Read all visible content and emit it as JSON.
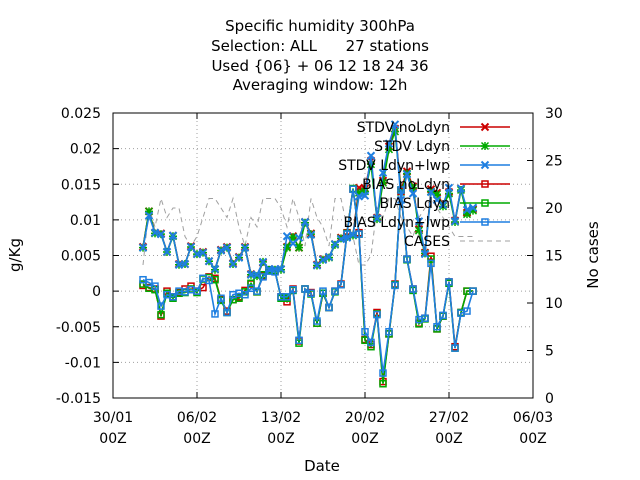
{
  "chart_data": {
    "type": "line",
    "title_lines": [
      "Specific humidity 300hPa",
      "Selection: ALL      27 stations",
      "Used {06} + 06 12 18 24 36",
      "Averaging window: 12h"
    ],
    "xlabel": "Date",
    "ylabel": "g/Kg",
    "y2label": "No cases",
    "x_ticks": [
      {
        "l1": "30/01",
        "l2": "00Z"
      },
      {
        "l1": "06/02",
        "l2": "00Z"
      },
      {
        "l1": "13/02",
        "l2": "00Z"
      },
      {
        "l1": "20/02",
        "l2": "00Z"
      },
      {
        "l1": "27/02",
        "l2": "00Z"
      },
      {
        "l1": "06/03",
        "l2": "00Z"
      }
    ],
    "xlim_days": [
      0,
      35
    ],
    "ylim": [
      -0.015,
      0.025
    ],
    "y_ticks": [
      "-0.015",
      "-0.01",
      "-0.005",
      "0",
      "0.005",
      "0.01",
      "0.015",
      "0.02",
      "0.025"
    ],
    "y2lim": [
      0,
      30
    ],
    "y2_ticks": [
      "0",
      "5",
      "10",
      "15",
      "20",
      "25",
      "30"
    ],
    "grid": true,
    "legend_position": "top-right",
    "colors": {
      "stdv_noldyn": "#cc0000",
      "stdv_ldyn": "#00aa00",
      "stdv_ldyn_lwp": "#1f7fe0",
      "bias_noldyn": "#cc0000",
      "bias_ldyn": "#00aa00",
      "bias_ldyn_lwp": "#1f7fe0",
      "cases": "#a0a0a0"
    },
    "x_days": [
      2.5,
      3,
      3.5,
      4,
      4.5,
      5,
      5.5,
      6,
      6.5,
      7,
      7.5,
      8,
      8.5,
      9,
      9.5,
      10,
      10.5,
      11,
      11.5,
      12,
      12.5,
      13,
      13.5,
      14,
      14.5,
      15,
      15.5,
      16,
      16.5,
      17,
      17.5,
      18,
      18.5,
      19,
      19.5,
      20,
      20.5,
      21,
      21.5,
      22,
      22.5,
      23,
      23.5,
      24,
      24.5,
      25,
      25.5,
      26,
      26.5,
      27,
      27.5,
      28,
      28.5,
      29,
      29.5,
      30
    ],
    "series": [
      {
        "name": "STDV noLdyn",
        "kind": "stdv",
        "marker": "x",
        "values": [
          0.0062,
          0.0112,
          0.0082,
          0.0081,
          0.0055,
          0.0078,
          0.0038,
          0.0038,
          0.0063,
          0.0052,
          0.0055,
          0.0042,
          0.0031,
          0.0058,
          0.0062,
          0.0039,
          0.0048,
          0.0062,
          0.0024,
          0.0022,
          0.004,
          0.0031,
          0.0031,
          0.0031,
          0.0062,
          0.0077,
          0.0061,
          0.0097,
          0.0081,
          0.0037,
          0.0045,
          0.0048,
          0.0066,
          0.0075,
          0.0077,
          0.0079,
          0.0145,
          0.0144,
          0.0183,
          0.0103,
          0.0155,
          0.0203,
          0.0228,
          0.0142,
          0.0168,
          0.0147,
          0.0087,
          0.0054,
          0.0143,
          0.0138,
          0.0121,
          0.0139,
          0.0099,
          0.0144,
          0.011,
          0.0115
        ]
      },
      {
        "name": "STDV Ldyn",
        "kind": "stdv",
        "marker": "star",
        "values": [
          0.0061,
          0.0112,
          0.0081,
          0.008,
          0.0055,
          0.0077,
          0.0037,
          0.0038,
          0.0062,
          0.0052,
          0.0054,
          0.0042,
          0.003,
          0.0057,
          0.0061,
          0.0038,
          0.0047,
          0.0061,
          0.0023,
          0.0021,
          0.0041,
          0.003,
          0.003,
          0.003,
          0.0061,
          0.0076,
          0.0061,
          0.0096,
          0.008,
          0.0036,
          0.0044,
          0.0047,
          0.0065,
          0.0074,
          0.0076,
          0.0078,
          0.0138,
          0.014,
          0.0178,
          0.0101,
          0.0152,
          0.0199,
          0.0224,
          0.0139,
          0.0165,
          0.0145,
          0.0085,
          0.0053,
          0.014,
          0.0136,
          0.0119,
          0.0137,
          0.0097,
          0.0142,
          0.0108,
          0.0113
        ]
      },
      {
        "name": "STDV Ldyn+lwp",
        "kind": "stdv",
        "marker": "x",
        "values": [
          0.0061,
          0.0106,
          0.0082,
          0.008,
          0.0055,
          0.0078,
          0.0037,
          0.0038,
          0.0062,
          0.0052,
          0.0054,
          0.0042,
          0.0031,
          0.0057,
          0.0061,
          0.0038,
          0.0047,
          0.0061,
          0.0023,
          0.0023,
          0.0041,
          0.0031,
          0.0031,
          0.0031,
          0.0077,
          0.0067,
          0.0075,
          0.0097,
          0.0079,
          0.0036,
          0.0044,
          0.0048,
          0.0066,
          0.0073,
          0.0075,
          0.0079,
          0.0133,
          0.0134,
          0.019,
          0.0102,
          0.0166,
          0.0207,
          0.0234,
          0.0128,
          0.0164,
          0.0137,
          0.0098,
          0.0052,
          0.0139,
          0.0128,
          0.0121,
          0.0145,
          0.0098,
          0.0144,
          0.0114,
          0.0117
        ]
      },
      {
        "name": "BIAS noLdyn",
        "kind": "bias",
        "marker": "square",
        "values": [
          0.0008,
          0.0005,
          0.0003,
          -0.0035,
          0.0,
          -0.0008,
          -0.0002,
          0.0003,
          0.0007,
          0.0,
          0.0005,
          0.002,
          0.0018,
          -0.0012,
          -0.0028,
          -0.0012,
          -0.0008,
          0.0001,
          0.001,
          -0.0001,
          0.0021,
          0.0029,
          0.0028,
          -0.0008,
          -0.0015,
          0.0003,
          -0.007,
          0.0003,
          -0.0002,
          -0.0045,
          -0.0003,
          -0.0023,
          0.0,
          0.001,
          0.0082,
          0.0143,
          0.0082,
          -0.0068,
          -0.0075,
          -0.003,
          -0.0127,
          -0.006,
          0.001,
          0.014,
          0.0045,
          0.0003,
          -0.0045,
          -0.0038,
          0.0049,
          -0.0053,
          -0.0035,
          0.0013,
          -0.0078,
          -0.003,
          0.0,
          0.0
        ]
      },
      {
        "name": "BIAS Ldyn",
        "kind": "bias",
        "marker": "square",
        "values": [
          0.001,
          0.0004,
          0.0002,
          -0.0033,
          -0.0003,
          -0.001,
          -0.0003,
          -0.0002,
          0.0003,
          -0.0002,
          0.0017,
          0.0019,
          0.0016,
          -0.0013,
          -0.003,
          -0.0012,
          -0.001,
          -0.0001,
          0.0011,
          -0.0001,
          0.0023,
          0.003,
          0.0029,
          -0.001,
          -0.001,
          0.0001,
          -0.0073,
          0.0003,
          -0.0004,
          -0.0045,
          -0.0003,
          -0.0023,
          -0.0001,
          0.0009,
          0.0081,
          0.0144,
          0.008,
          -0.0069,
          -0.0078,
          -0.0032,
          -0.013,
          -0.006,
          0.0009,
          0.0142,
          0.0044,
          0.0001,
          -0.0046,
          -0.0039,
          0.0045,
          -0.0053,
          -0.0035,
          0.0011,
          -0.008,
          -0.003,
          0.0,
          0.0
        ]
      },
      {
        "name": "BIAS Ldyn+lwp",
        "kind": "bias",
        "marker": "square",
        "values": [
          0.0016,
          0.0012,
          0.0007,
          -0.0021,
          -0.0005,
          -0.0008,
          0.0,
          -0.0001,
          0.0002,
          0.0,
          0.0018,
          0.0015,
          -0.0032,
          -0.001,
          -0.003,
          -0.0005,
          -0.0003,
          -0.0005,
          0.0004,
          0.0,
          0.002,
          0.0028,
          0.0027,
          -0.0008,
          -0.0008,
          0.0002,
          -0.0069,
          0.0003,
          -0.0003,
          -0.0042,
          0.0,
          -0.0023,
          0.0,
          0.0009,
          0.008,
          0.0143,
          0.008,
          -0.0057,
          -0.0072,
          -0.0033,
          -0.0115,
          -0.0057,
          0.0008,
          0.0142,
          0.0045,
          0.0003,
          -0.004,
          -0.0038,
          0.0039,
          -0.005,
          -0.0034,
          0.0013,
          -0.008,
          -0.0031,
          -0.0028,
          0.0
        ]
      },
      {
        "name": "CASES",
        "kind": "cases",
        "marker": "none",
        "values": [
          14,
          20,
          18,
          21,
          19,
          20,
          20,
          17,
          16,
          17,
          19,
          21,
          21,
          20,
          19,
          21,
          18,
          16,
          19,
          18,
          21,
          21,
          21,
          20,
          18,
          21,
          19,
          16,
          21,
          19,
          18,
          16,
          21,
          21,
          18,
          17,
          14,
          14,
          15,
          20,
          19,
          21,
          21,
          19,
          18,
          17,
          19,
          20,
          21,
          20,
          19,
          18,
          17,
          17,
          17,
          17
        ]
      }
    ]
  }
}
